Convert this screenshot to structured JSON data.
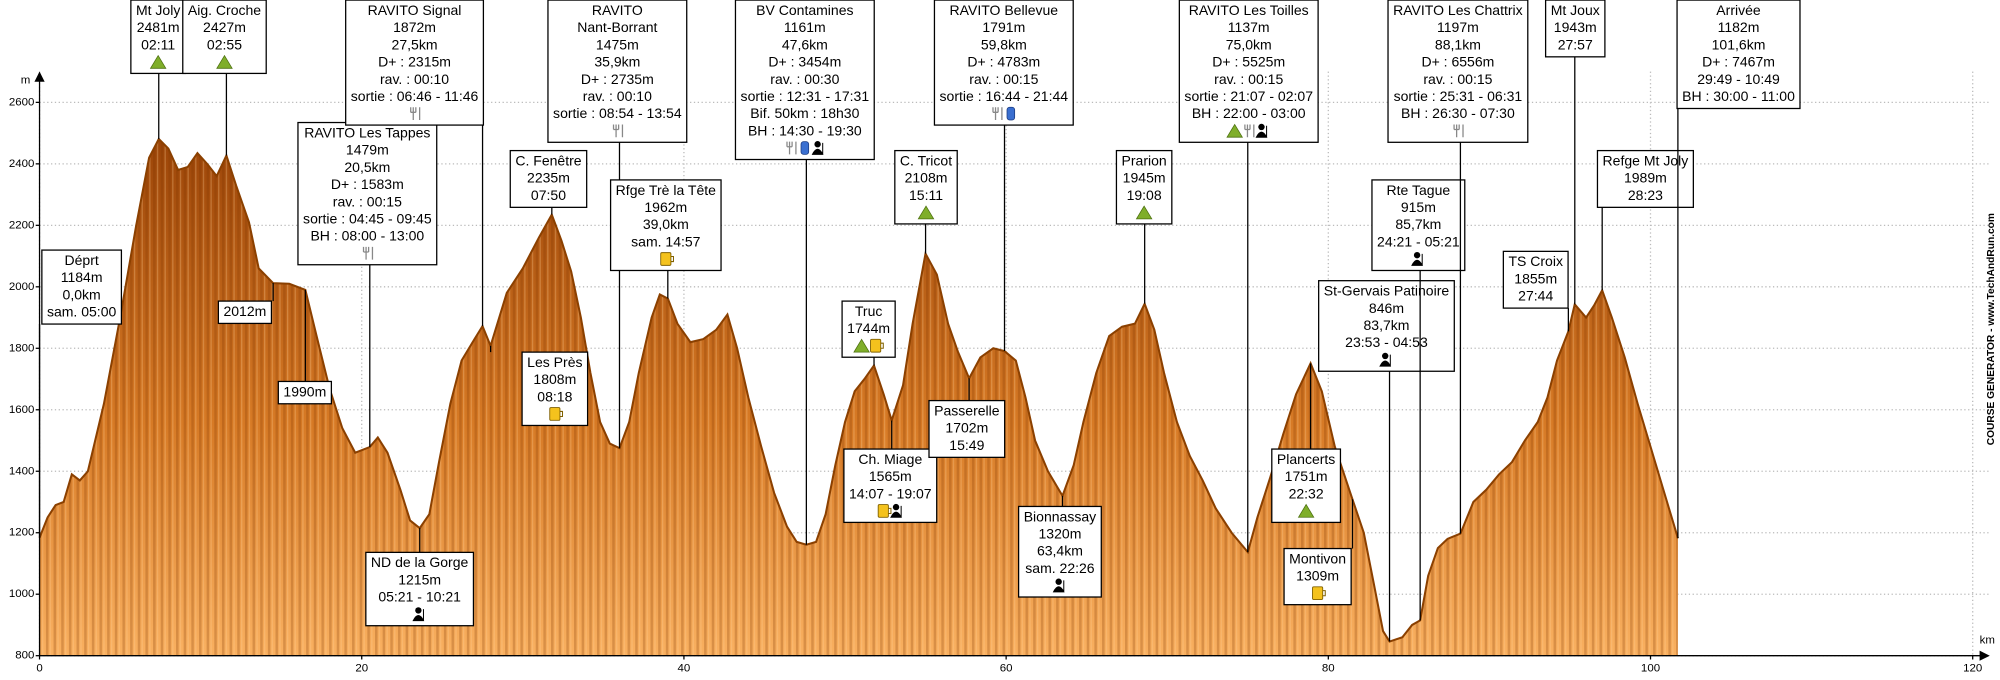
{
  "chart_data": {
    "type": "area",
    "y_label": "m",
    "x_label": "km",
    "watermark": "COURSE GENERATOR - www.TechAndRun.com",
    "color": "#c8650f",
    "line_color": "#8b4000",
    "grid": true,
    "xlim": [
      0,
      121
    ],
    "ylim": [
      800,
      2700
    ],
    "xticks": [
      0,
      20,
      40,
      60,
      80,
      100,
      120
    ],
    "yticks": [
      800,
      1000,
      1200,
      1400,
      1600,
      1800,
      2000,
      2200,
      2400,
      2600
    ],
    "x": [
      0,
      0.5,
      1,
      1.5,
      2,
      2.5,
      3,
      4,
      5,
      6,
      6.8,
      7.4,
      8,
      8.6,
      9.2,
      9.8,
      10.4,
      11,
      11.6,
      12.2,
      13,
      13.6,
      14.5,
      15.5,
      16.5,
      17.2,
      18,
      18.8,
      19.6,
      20.5,
      21,
      21.6,
      22.4,
      23,
      23.6,
      24.2,
      24.8,
      25.5,
      26.2,
      27,
      27.5,
      28,
      29,
      30,
      31,
      31.8,
      32.4,
      33,
      33.6,
      34.2,
      34.8,
      35.4,
      36,
      36.6,
      37.2,
      38,
      38.5,
      39,
      39.6,
      40.4,
      41.2,
      42,
      42.7,
      43.3,
      44,
      44.8,
      45.6,
      46.4,
      47,
      47.6,
      48.2,
      48.8,
      49.4,
      50,
      50.6,
      51.2,
      51.8,
      52.4,
      52.9,
      53.6,
      54.2,
      55,
      55.7,
      56.4,
      57,
      57.7,
      58.4,
      59.2,
      59.9,
      60.6,
      61.2,
      61.8,
      62.6,
      63.5,
      64.2,
      64.8,
      65.6,
      66.4,
      67.2,
      68,
      68.6,
      69.2,
      69.8,
      70.6,
      71.4,
      72.2,
      73,
      74,
      75,
      75.6,
      76.4,
      77.2,
      78,
      78.9,
      79.6,
      80.4,
      81.5,
      82.2,
      82.8,
      83.4,
      83.8,
      84.6,
      85.2,
      85.7,
      86.2,
      86.8,
      87.4,
      88.2,
      89,
      89.8,
      90.6,
      91.4,
      92.2,
      93,
      93.6,
      94.2,
      94.9,
      95.3,
      96,
      96.5,
      97,
      97.6,
      98.4,
      99.2,
      100,
      100.8,
      101.7
    ],
    "values": [
      1184,
      1250,
      1290,
      1300,
      1390,
      1370,
      1400,
      1620,
      1900,
      2200,
      2420,
      2481,
      2450,
      2380,
      2390,
      2435,
      2400,
      2360,
      2427,
      2330,
      2210,
      2060,
      2012,
      2010,
      1990,
      1840,
      1670,
      1540,
      1460,
      1479,
      1510,
      1460,
      1340,
      1240,
      1215,
      1260,
      1430,
      1620,
      1760,
      1830,
      1872,
      1808,
      1980,
      2060,
      2160,
      2235,
      2150,
      2050,
      1900,
      1720,
      1560,
      1490,
      1475,
      1560,
      1720,
      1900,
      1975,
      1962,
      1880,
      1820,
      1830,
      1860,
      1910,
      1800,
      1640,
      1480,
      1330,
      1220,
      1170,
      1161,
      1170,
      1260,
      1420,
      1560,
      1660,
      1700,
      1744,
      1650,
      1565,
      1680,
      1880,
      2108,
      2040,
      1880,
      1790,
      1702,
      1770,
      1800,
      1791,
      1760,
      1640,
      1500,
      1400,
      1320,
      1420,
      1560,
      1720,
      1840,
      1870,
      1880,
      1945,
      1860,
      1720,
      1560,
      1450,
      1370,
      1280,
      1200,
      1137,
      1250,
      1380,
      1520,
      1650,
      1751,
      1660,
      1480,
      1309,
      1200,
      1040,
      880,
      846,
      860,
      900,
      915,
      1060,
      1150,
      1180,
      1197,
      1300,
      1340,
      1390,
      1430,
      1500,
      1560,
      1640,
      1760,
      1855,
      1943,
      1900,
      1940,
      1989,
      1900,
      1770,
      1620,
      1480,
      1340,
      1182
    ],
    "annotations": [
      {
        "x": 0,
        "lines": [
          "Déprt",
          "1184m",
          "0,0km",
          "sam. 05:00"
        ]
      },
      {
        "x": 7.4,
        "lines": [
          "Mt Joly",
          "2481m",
          "02:11"
        ]
      },
      {
        "x": 11.6,
        "lines": [
          "Aig. Croche",
          "2427m",
          "02:55"
        ]
      },
      {
        "x": 14.5,
        "lines": [
          "2012m"
        ]
      },
      {
        "x": 16.5,
        "lines": [
          "1990m"
        ]
      },
      {
        "x": 20.5,
        "lines": [
          "RAVITO Les Tappes",
          "1479m",
          "20,5km",
          "D+ : 1583m",
          "rav. : 00:15",
          "sortie : 04:45 - 09:45",
          "BH : 08:00 - 13:00"
        ]
      },
      {
        "x": 23.6,
        "lines": [
          "ND de la Gorge",
          "1215m",
          "05:21 - 10:21"
        ]
      },
      {
        "x": 27.5,
        "lines": [
          "RAVITO Signal",
          "1872m",
          "27,5km",
          "D+ : 2315m",
          "rav. : 00:10",
          "sortie : 06:46 - 11:46"
        ]
      },
      {
        "x": 31.8,
        "lines": [
          "C. Fenêtre",
          "2235m",
          "07:50"
        ]
      },
      {
        "x": 28,
        "lines": [
          "Les Près",
          "1808m",
          "08:18"
        ]
      },
      {
        "x": 36,
        "lines": [
          "RAVITO",
          "Nant-Borrant",
          "1475m",
          "35,9km",
          "D+ : 2735m",
          "rav. : 00:10",
          "sortie : 08:54 - 13:54"
        ]
      },
      {
        "x": 39,
        "lines": [
          "Rfge Trè la Tête",
          "1962m",
          "39,0km",
          "sam. 14:57"
        ]
      },
      {
        "x": 47.6,
        "lines": [
          "BV Contamines",
          "1161m",
          "47,6km",
          "D+ : 3454m",
          "rav. : 00:30",
          "sortie : 12:31 - 17:31",
          "Bif. 50km : 18h30",
          "BH : 14:30 - 19:30"
        ]
      },
      {
        "x": 51.8,
        "lines": [
          "Truc",
          "1744m"
        ]
      },
      {
        "x": 52.9,
        "lines": [
          "Ch. Miage",
          "1565m",
          "14:07 - 19:07"
        ]
      },
      {
        "x": 55,
        "lines": [
          "C. Tricot",
          "2108m",
          "15:11"
        ]
      },
      {
        "x": 57.7,
        "lines": [
          "Passerelle",
          "1702m",
          "15:49"
        ]
      },
      {
        "x": 59.9,
        "lines": [
          "RAVITO Bellevue",
          "1791m",
          "59,8km",
          "D+ : 4783m",
          "rav. : 00:15",
          "sortie : 16:44 - 21:44"
        ]
      },
      {
        "x": 63.5,
        "lines": [
          "Bionnassay",
          "1320m",
          "63,4km",
          "sam. 22:26"
        ]
      },
      {
        "x": 68.6,
        "lines": [
          "Prarion",
          "1945m",
          "19:08"
        ]
      },
      {
        "x": 75,
        "lines": [
          "RAVITO Les Toilles",
          "1137m",
          "75,0km",
          "D+ : 5525m",
          "rav. : 00:15",
          "sortie : 21:07 - 02:07",
          "BH : 22:00 - 03:00"
        ]
      },
      {
        "x": 78.9,
        "lines": [
          "Plancerts",
          "1751m",
          "22:32"
        ]
      },
      {
        "x": 81.5,
        "lines": [
          "Montivon",
          "1309m"
        ]
      },
      {
        "x": 83.8,
        "lines": [
          "St-Gervais Patinoire",
          "846m",
          "83,7km",
          "23:53 - 04:53"
        ]
      },
      {
        "x": 85.7,
        "lines": [
          "Rte Tague",
          "915m",
          "85,7km",
          "24:21 - 05:21"
        ]
      },
      {
        "x": 88.2,
        "lines": [
          "RAVITO Les Chattrix",
          "1197m",
          "88,1km",
          "D+ : 6556m",
          "rav. : 00:15",
          "sortie : 25:31 - 06:31",
          "BH : 26:30 - 07:30"
        ]
      },
      {
        "x": 94.9,
        "lines": [
          "TS Croix",
          "1855m",
          "27:44"
        ]
      },
      {
        "x": 95.3,
        "lines": [
          "Mt Joux",
          "1943m",
          "27:57"
        ]
      },
      {
        "x": 97,
        "lines": [
          "Refge Mt Joly",
          "1989m",
          "28:23"
        ]
      },
      {
        "x": 101.7,
        "lines": [
          "Arrivée",
          "1182m",
          "101,6km",
          "D+ : 7467m",
          "29:49 - 10:49",
          "BH : 30:00 - 11:00"
        ]
      }
    ]
  }
}
